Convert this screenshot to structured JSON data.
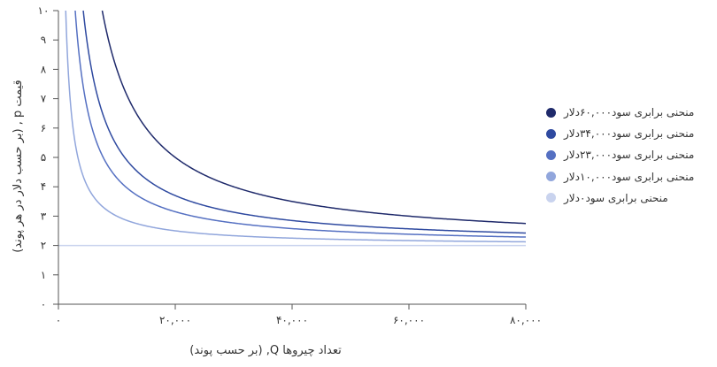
{
  "chart_data": {
    "type": "line",
    "xlabel": "تعداد چیروها Q, (بر حسب پوند)",
    "ylabel": "قیمت p , (بر حسب دلار در هر پوند)",
    "xlim": [
      0,
      80000
    ],
    "ylim": [
      0,
      10
    ],
    "x_ticks": [
      0,
      20000,
      40000,
      60000,
      80000
    ],
    "x_tick_labels": [
      "۰",
      "۲۰,۰۰۰",
      "۴۰,۰۰۰",
      "۶۰,۰۰۰",
      "۸۰,۰۰۰"
    ],
    "y_ticks": [
      0,
      1,
      2,
      3,
      4,
      5,
      6,
      7,
      8,
      9,
      10
    ],
    "y_tick_labels": [
      "۰",
      "۱",
      "۲",
      "۳",
      "۴",
      "۵",
      "۶",
      "۷",
      "۸",
      "۹",
      "۱۰"
    ],
    "marginal_cost": 2,
    "legend_position": "right",
    "grid": false,
    "series": [
      {
        "name": "منحنی برابری سود۶۰,۰۰۰دلار",
        "profit": 60000,
        "color": "#1f2a6b"
      },
      {
        "name": "منحنی برابری سود۳۴,۰۰۰دلار",
        "profit": 34000,
        "color": "#2f4aa0"
      },
      {
        "name": "منحنی برابری سود۲۳,۰۰۰دلار",
        "profit": 23000,
        "color": "#5570c2"
      },
      {
        "name": "منحنی برابری سود۱۰,۰۰۰دلار",
        "profit": 10000,
        "color": "#91a6dc"
      },
      {
        "name": "منحنی برابری سود۰دلار",
        "profit": 0,
        "color": "#c9d3ee"
      }
    ]
  }
}
